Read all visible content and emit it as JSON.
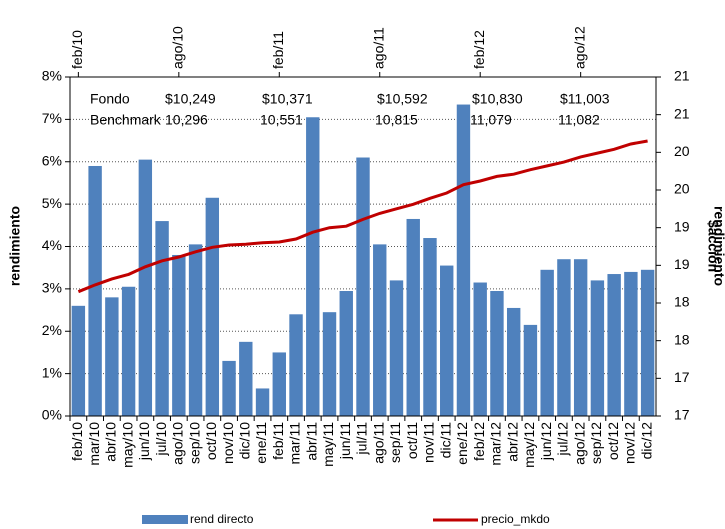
{
  "chart_data": {
    "type": "bar_line",
    "ylabel": "rendimiento",
    "y2label": [
      "$acción",
      "rendimiento"
    ],
    "categories": [
      "feb/10",
      "mar/10",
      "abr/10",
      "may/10",
      "jun/10",
      "jul/10",
      "ago/10",
      "sep/10",
      "oct/10",
      "nov/10",
      "dic/10",
      "ene/11",
      "feb/11",
      "mar/11",
      "abr/11",
      "may/11",
      "jun/11",
      "jul/11",
      "ago/11",
      "sep/11",
      "oct/11",
      "nov/11",
      "dic/11",
      "ene/12",
      "feb/12",
      "mar/12",
      "abr/12",
      "may/12",
      "jun/12",
      "jul/12",
      "ago/12",
      "sep/12",
      "oct/12",
      "nov/12",
      "dic/12"
    ],
    "top_axis": [
      "feb/10",
      "ago/10",
      "feb/11",
      "ago/11",
      "feb/12",
      "ago/12"
    ],
    "series": [
      {
        "name": "rend directo",
        "type": "bar",
        "color": "#4f81bd",
        "values": [
          2.6,
          5.9,
          2.8,
          3.05,
          6.05,
          4.6,
          3.8,
          4.05,
          5.15,
          1.3,
          1.75,
          0.65,
          1.5,
          2.4,
          7.05,
          2.45,
          2.95,
          6.1,
          4.05,
          3.2,
          4.65,
          4.2,
          3.55,
          7.35,
          3.15,
          2.95,
          2.55,
          2.15,
          3.45,
          3.7,
          3.7,
          3.2,
          3.35,
          3.4,
          3.45
        ]
      },
      {
        "name": "precio_mkdo",
        "type": "line",
        "axis": "y2",
        "color": "#c00000",
        "values": [
          18.15,
          18.24,
          18.32,
          18.38,
          18.48,
          18.56,
          18.61,
          18.68,
          18.74,
          18.77,
          18.78,
          18.8,
          18.81,
          18.85,
          18.94,
          19.0,
          19.02,
          19.11,
          19.19,
          19.25,
          19.31,
          19.39,
          19.46,
          19.57,
          19.62,
          19.68,
          19.71,
          19.77,
          19.82,
          19.87,
          19.94,
          19.99,
          20.04,
          20.11,
          20.15
        ]
      }
    ],
    "ylim": [
      0,
      8
    ],
    "yticks": [
      {
        "value": 0,
        "label": "0%"
      },
      {
        "value": 1,
        "label": "1%"
      },
      {
        "value": 2,
        "label": "2%"
      },
      {
        "value": 3,
        "label": "3%"
      },
      {
        "value": 4,
        "label": "4%"
      },
      {
        "value": 5,
        "label": "5%"
      },
      {
        "value": 6,
        "label": "6%"
      },
      {
        "value": 7,
        "label": "7%"
      },
      {
        "value": 8,
        "label": "8%"
      }
    ],
    "y2lim": [
      16.5,
      21
    ],
    "y2ticks": [
      {
        "value": 16.5,
        "label": "17"
      },
      17,
      {
        "value": 17.5,
        "label": "18"
      },
      18,
      {
        "value": 18.5,
        "label": "19"
      },
      19,
      {
        "value": 19.5,
        "label": "20"
      },
      20,
      {
        "value": 20.5,
        "label": "21"
      },
      21
    ],
    "grid": true,
    "annotation_rows": [
      "Fondo",
      "Benchmark"
    ],
    "annotations": [
      {
        "fondo": "$10,249",
        "benchmark": "10,296"
      },
      {
        "fondo": "$10,371",
        "benchmark": "10,551"
      },
      {
        "fondo": "$10,592",
        "benchmark": "10,815"
      },
      {
        "fondo": "$10,830",
        "benchmark": "11,079"
      },
      {
        "fondo": "$11,003",
        "benchmark": "11,082"
      }
    ]
  }
}
